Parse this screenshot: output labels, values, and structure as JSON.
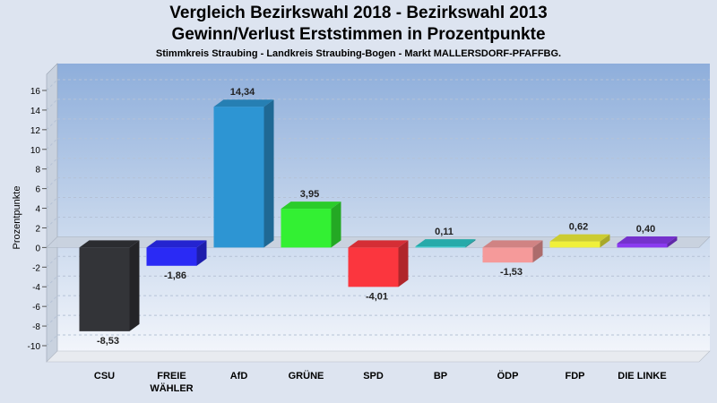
{
  "chart_data": {
    "type": "bar",
    "title": "Vergleich Bezirkswahl 2018 - Bezirkswahl 2013",
    "subtitle": "Gewinn/Verlust Erststimmen in Prozentpunkte",
    "subtitle2": "Stimmkreis Straubing - Landkreis Straubing-Bogen - Markt MALLERSDORF-PFAFFBG.",
    "ylabel": "Prozentpunkte",
    "ylim": [
      -10,
      16
    ],
    "yticks": [
      16,
      14,
      12,
      10,
      8,
      6,
      4,
      2,
      0,
      -2,
      -4,
      -6,
      -8,
      -10
    ],
    "grid": true,
    "categories": [
      "CSU",
      "FREIE WÄHLER",
      "AfD",
      "GRÜNE",
      "SPD",
      "BP",
      "ÖDP",
      "FDP",
      "DIE LINKE"
    ],
    "category_lines": [
      [
        "CSU"
      ],
      [
        "FREIE",
        "WÄHLER"
      ],
      [
        "AfD"
      ],
      [
        "GRÜNE"
      ],
      [
        "SPD"
      ],
      [
        "BP"
      ],
      [
        "ÖDP"
      ],
      [
        "FDP"
      ],
      [
        "DIE LINKE"
      ]
    ],
    "values": [
      -8.53,
      -1.86,
      14.34,
      3.95,
      -4.01,
      0.11,
      -1.53,
      0.62,
      0.4
    ],
    "value_labels": [
      "-8,53",
      "-1,86",
      "14,34",
      "3,95",
      "-4,01",
      "0,11",
      "-1,53",
      "0,62",
      "0,40"
    ],
    "colors": [
      "#333438",
      "#2a2af5",
      "#2d95d3",
      "#33f033",
      "#fb363e",
      "#2ec8c8",
      "#f59a9a",
      "#f0f03a",
      "#8a3af0"
    ]
  }
}
